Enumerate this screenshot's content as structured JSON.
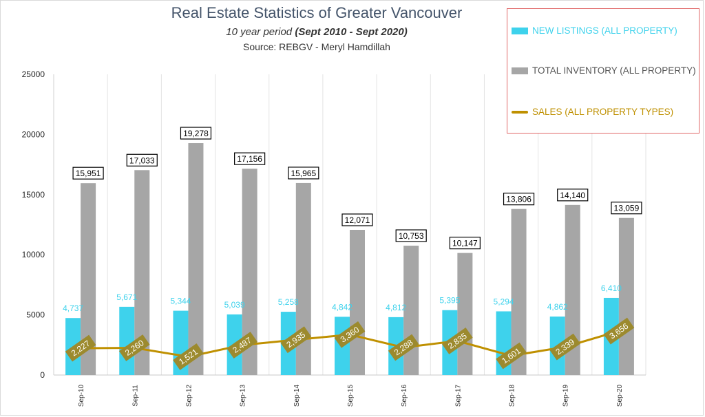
{
  "title": "Real Estate Statistics of Greater Vancouver",
  "subtitle_prefix": "10 year period  ",
  "subtitle_bold": "(Sept 2010 - Sept 2020)",
  "source": "Source: REBGV  - Meryl Hamdillah",
  "legend": {
    "new_listings": "NEW LISTINGS (ALL PROPERTY)",
    "total_inventory": "TOTAL INVENTORY (ALL PROPERTY)",
    "sales": "SALES (ALL PROPERTY TYPES)"
  },
  "colors": {
    "new_listings": "#3ed2ec",
    "total_inventory": "#a6a6a6",
    "sales": "#bf9000",
    "sales_label_bg": "#9c8a2e",
    "legend_border": "#e06666",
    "title": "#44546a"
  },
  "chart_data": {
    "type": "bar",
    "categories": [
      "Sep-10",
      "Sep-11",
      "Sep-12",
      "Sep-13",
      "Sep-14",
      "Sep-15",
      "Sep-16",
      "Sep-17",
      "Sep-18",
      "Sep-19",
      "Sep-20"
    ],
    "ylim": [
      0,
      25000
    ],
    "yticks": [
      0,
      5000,
      10000,
      15000,
      20000,
      25000
    ],
    "grid": "vertical",
    "legend_position": "top-right",
    "series": [
      {
        "name": "NEW LISTINGS (ALL PROPERTY)",
        "kind": "bar",
        "values": [
          4737,
          5671,
          5344,
          5039,
          5258,
          4842,
          4812,
          5395,
          5294,
          4862,
          6410
        ],
        "labels": [
          "4,737",
          "5,671",
          "5,344",
          "5,039",
          "5,258",
          "4,842",
          "4,812",
          "5,395",
          "5,294",
          "4,862",
          "6,410"
        ]
      },
      {
        "name": "TOTAL INVENTORY (ALL PROPERTY)",
        "kind": "bar",
        "values": [
          15951,
          17033,
          19278,
          17156,
          15965,
          12071,
          10753,
          10147,
          13806,
          14140,
          13059
        ],
        "labels": [
          "15,951",
          "17,033",
          "19,278",
          "17,156",
          "15,965",
          "12,071",
          "10,753",
          "10,147",
          "13,806",
          "14,140",
          "13,059"
        ]
      },
      {
        "name": "SALES (ALL PROPERTY TYPES)",
        "kind": "line",
        "values": [
          2227,
          2260,
          1521,
          2487,
          2935,
          3360,
          2288,
          2835,
          1601,
          2339,
          3656
        ],
        "labels": [
          "2,227",
          "2,260",
          "1,521",
          "2,487",
          "2,935",
          "3,360",
          "2,288",
          "2,835",
          "1,601",
          "2,339",
          "3,656"
        ]
      }
    ]
  }
}
